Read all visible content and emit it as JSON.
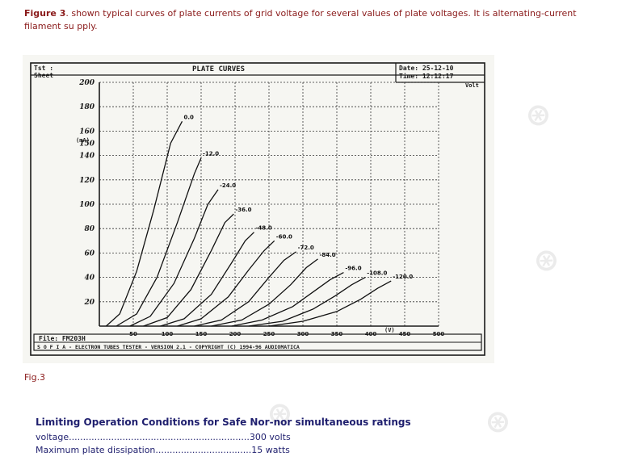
{
  "caption": {
    "bold": "Figure 3",
    "text": ". shown typical curves of plate currents of grid voltage for several values of plate voltages. It is alternating-current filament su pply."
  },
  "figure": {
    "top_left_1": "Tst :",
    "top_left_2": "Sheet",
    "title": "PLATE CURVES",
    "date": "Date: 25-12-10",
    "time": "Time: 12:12:17",
    "unit_x": "Volt",
    "ylabel": "(mA)",
    "x_axis_unit": "(V)",
    "file": "File: FM203H",
    "footer": "S O F I A  -  ELECTRON TUBES TESTER  -  VERSION 2.1  -  COPYRIGHT (C) 1994-96 AUDIOMATICA",
    "curve_labels": [
      "0.0",
      "-12.0",
      "-24.0",
      "-36.0",
      "-48.0",
      "-60.0",
      "-72.0",
      "-84.0",
      "-96.0",
      "-108.0",
      "-120.0"
    ]
  },
  "chart_data": {
    "type": "line",
    "xlabel": "(V)",
    "ylabel": "(mA)",
    "xlim": [
      0,
      500
    ],
    "ylim": [
      0,
      200
    ],
    "x_ticks": [
      "50",
      "100",
      "150",
      "200",
      "250",
      "300",
      "350",
      "400",
      "450",
      "500"
    ],
    "y_ticks": [
      "20",
      "40",
      "60",
      "80",
      "100",
      "120",
      "140",
      "150",
      "160",
      "180",
      "200"
    ],
    "series": [
      {
        "name": "0.0",
        "x": [
          10,
          30,
          55,
          80,
          105,
          122
        ],
        "y": [
          0,
          10,
          45,
          95,
          150,
          168
        ]
      },
      {
        "name": "-12.0",
        "x": [
          25,
          55,
          85,
          115,
          140,
          150
        ],
        "y": [
          0,
          10,
          40,
          85,
          125,
          138
        ]
      },
      {
        "name": "-24.0",
        "x": [
          45,
          75,
          110,
          140,
          160,
          175
        ],
        "y": [
          0,
          8,
          35,
          72,
          100,
          112
        ]
      },
      {
        "name": "-36.0",
        "x": [
          65,
          100,
          135,
          165,
          185,
          198
        ],
        "y": [
          0,
          7,
          30,
          62,
          85,
          92
        ]
      },
      {
        "name": "-48.0",
        "x": [
          90,
          125,
          165,
          195,
          215,
          228
        ],
        "y": [
          0,
          6,
          26,
          52,
          70,
          77
        ]
      },
      {
        "name": "-60.0",
        "x": [
          115,
          150,
          190,
          220,
          243,
          258
        ],
        "y": [
          0,
          6,
          24,
          46,
          62,
          70
        ]
      },
      {
        "name": "-72.0",
        "x": [
          140,
          180,
          220,
          250,
          272,
          290
        ],
        "y": [
          0,
          5,
          20,
          40,
          54,
          61
        ]
      },
      {
        "name": "-84.0",
        "x": [
          165,
          210,
          250,
          282,
          305,
          322
        ],
        "y": [
          0,
          5,
          18,
          34,
          48,
          55
        ]
      },
      {
        "name": "-96.0",
        "x": [
          195,
          240,
          285,
          315,
          340,
          360
        ],
        "y": [
          0,
          5,
          16,
          28,
          38,
          44
        ]
      },
      {
        "name": "-108.0",
        "x": [
          220,
          270,
          315,
          348,
          372,
          392
        ],
        "y": [
          0,
          4,
          14,
          25,
          34,
          40
        ]
      },
      {
        "name": "-120.0",
        "x": [
          250,
          300,
          350,
          385,
          410,
          430
        ],
        "y": [
          0,
          4,
          12,
          22,
          31,
          37
        ]
      }
    ]
  },
  "fig_label": "Fig.3",
  "limits": {
    "title": "Limiting Operation Conditions for Safe Nor-nor simultaneous ratings",
    "rows": [
      {
        "label": "voltage",
        "dots": "................................................................",
        "value": "300 volts"
      },
      {
        "label": "Maximum plate dissipation",
        "dots": "..................................",
        "value": "15 watts"
      }
    ]
  },
  "colors": {
    "caption": "#8a1a1a",
    "body_text": "#1f1f6e",
    "ink": "#1a1a1a"
  }
}
